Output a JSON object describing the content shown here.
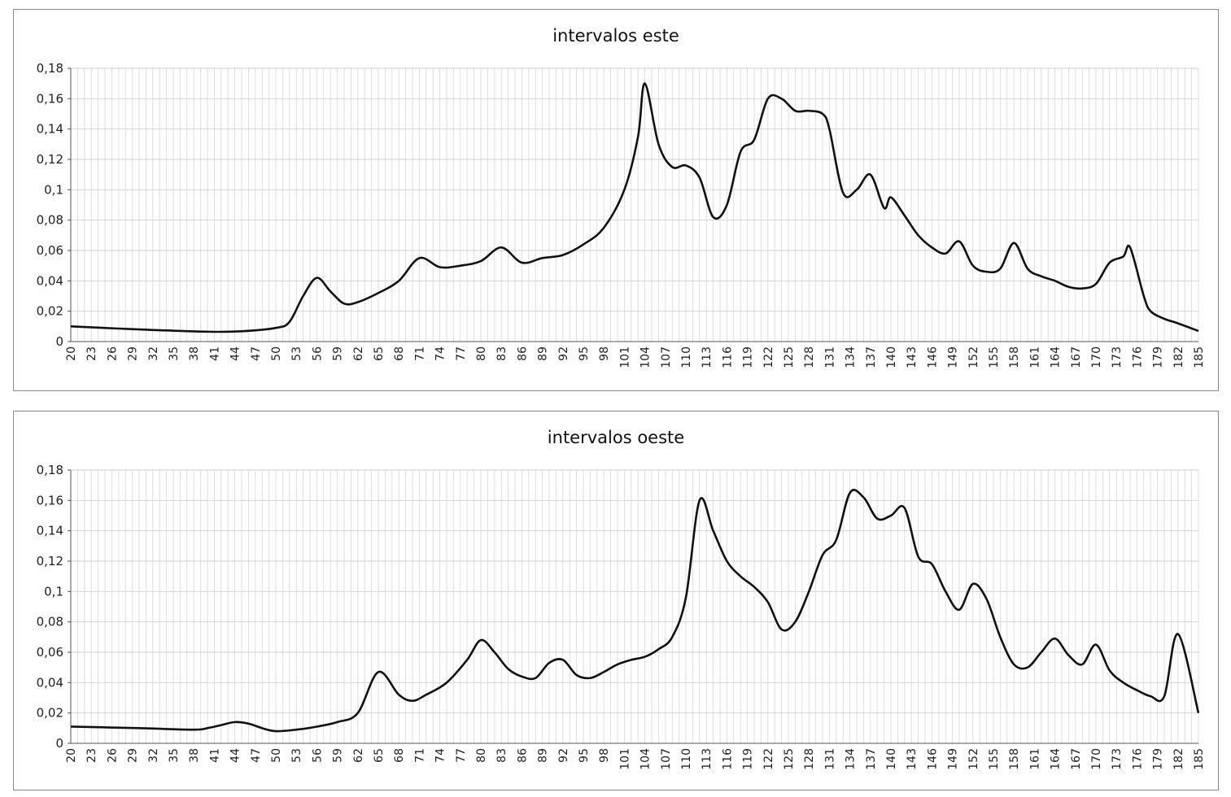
{
  "chart_data": [
    {
      "type": "line",
      "title": "intervalos este",
      "xlabel": "",
      "ylabel": "",
      "x_range": [
        20,
        185
      ],
      "xticks": [
        20,
        23,
        26,
        29,
        32,
        35,
        38,
        41,
        44,
        47,
        50,
        53,
        56,
        59,
        62,
        65,
        68,
        71,
        74,
        77,
        80,
        83,
        86,
        89,
        92,
        95,
        98,
        101,
        104,
        107,
        110,
        113,
        116,
        119,
        122,
        125,
        128,
        131,
        134,
        137,
        140,
        143,
        146,
        149,
        152,
        155,
        158,
        161,
        164,
        167,
        170,
        173,
        176,
        179,
        182,
        185
      ],
      "yticks": [
        "0",
        "0,02",
        "0,04",
        "0,06",
        "0,08",
        "0,1",
        "0,12",
        "0,14",
        "0,16",
        "0,18"
      ],
      "ylim": [
        0,
        0.18
      ],
      "grid": true,
      "legend": "none",
      "line_color": "#111111",
      "x": [
        20,
        30,
        40,
        45,
        50,
        52,
        54,
        56,
        58,
        60,
        62,
        65,
        68,
        71,
        74,
        77,
        80,
        83,
        86,
        89,
        92,
        95,
        98,
        101,
        103,
        104,
        106,
        108,
        110,
        112,
        114,
        116,
        118,
        120,
        122,
        124,
        126,
        128,
        130,
        131,
        133,
        135,
        137,
        139,
        140,
        142,
        144,
        146,
        148,
        150,
        152,
        154,
        156,
        158,
        160,
        162,
        164,
        166,
        168,
        170,
        172,
        174,
        175,
        177,
        178,
        180,
        182,
        185
      ],
      "y": [
        0.01,
        0.008,
        0.0065,
        0.0068,
        0.009,
        0.013,
        0.03,
        0.042,
        0.033,
        0.025,
        0.026,
        0.032,
        0.04,
        0.055,
        0.049,
        0.05,
        0.053,
        0.062,
        0.052,
        0.055,
        0.057,
        0.064,
        0.075,
        0.1,
        0.135,
        0.17,
        0.13,
        0.115,
        0.116,
        0.108,
        0.082,
        0.09,
        0.125,
        0.133,
        0.16,
        0.16,
        0.152,
        0.152,
        0.15,
        0.14,
        0.098,
        0.1,
        0.11,
        0.088,
        0.095,
        0.083,
        0.07,
        0.062,
        0.058,
        0.066,
        0.05,
        0.046,
        0.048,
        0.065,
        0.048,
        0.043,
        0.04,
        0.036,
        0.035,
        0.038,
        0.052,
        0.056,
        0.062,
        0.03,
        0.02,
        0.015,
        0.012,
        0.007
      ]
    },
    {
      "type": "line",
      "title": "intervalos oeste",
      "xlabel": "",
      "ylabel": "",
      "x_range": [
        20,
        185
      ],
      "xticks": [
        20,
        23,
        26,
        29,
        32,
        35,
        38,
        41,
        44,
        47,
        50,
        53,
        56,
        59,
        62,
        65,
        68,
        71,
        74,
        77,
        80,
        83,
        86,
        89,
        92,
        95,
        98,
        101,
        104,
        107,
        110,
        113,
        116,
        119,
        122,
        125,
        128,
        131,
        134,
        137,
        140,
        143,
        146,
        149,
        152,
        155,
        158,
        161,
        164,
        167,
        170,
        173,
        176,
        179,
        182,
        185
      ],
      "yticks": [
        "0",
        "0,02",
        "0,04",
        "0,06",
        "0,08",
        "0,1",
        "0,12",
        "0,14",
        "0,16",
        "0,18"
      ],
      "ylim": [
        0,
        0.18
      ],
      "grid": true,
      "legend": "none",
      "line_color": "#111111",
      "x": [
        20,
        30,
        38,
        40,
        42,
        44,
        46,
        48,
        50,
        53,
        56,
        59,
        62,
        65,
        68,
        70,
        72,
        75,
        78,
        80,
        82,
        84,
        86,
        88,
        90,
        92,
        94,
        96,
        98,
        100,
        102,
        104,
        106,
        108,
        110,
        112,
        114,
        116,
        118,
        120,
        122,
        124,
        126,
        128,
        130,
        132,
        134,
        136,
        138,
        140,
        142,
        144,
        146,
        148,
        150,
        152,
        154,
        156,
        158,
        160,
        162,
        164,
        166,
        168,
        170,
        172,
        174,
        176,
        178,
        180,
        182,
        185
      ],
      "y": [
        0.011,
        0.01,
        0.009,
        0.01,
        0.012,
        0.014,
        0.013,
        0.01,
        0.008,
        0.009,
        0.011,
        0.014,
        0.02,
        0.047,
        0.032,
        0.028,
        0.032,
        0.04,
        0.055,
        0.068,
        0.06,
        0.049,
        0.044,
        0.043,
        0.053,
        0.055,
        0.045,
        0.043,
        0.047,
        0.052,
        0.055,
        0.057,
        0.062,
        0.07,
        0.096,
        0.16,
        0.14,
        0.12,
        0.11,
        0.103,
        0.093,
        0.075,
        0.08,
        0.1,
        0.124,
        0.134,
        0.165,
        0.162,
        0.148,
        0.15,
        0.155,
        0.123,
        0.118,
        0.1,
        0.088,
        0.105,
        0.095,
        0.07,
        0.052,
        0.05,
        0.06,
        0.069,
        0.058,
        0.052,
        0.065,
        0.048,
        0.04,
        0.035,
        0.031,
        0.031,
        0.072,
        0.02
      ]
    }
  ]
}
